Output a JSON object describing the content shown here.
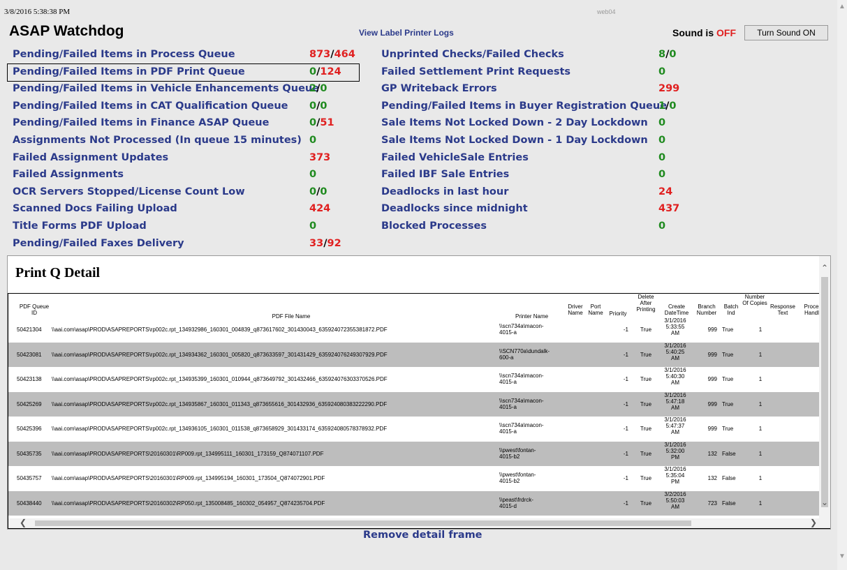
{
  "header": {
    "timestamp": "3/8/2016 5:38:38 PM",
    "server": "web04",
    "title": "ASAP Watchdog",
    "logs_link": "View Label Printer Logs",
    "sound_label": "Sound is",
    "sound_state": "OFF",
    "sound_button": "Turn Sound ON"
  },
  "metrics_left": [
    {
      "label": "Pending/Failed Items in Process Queue",
      "pending": "873",
      "failed": "464",
      "pending_color": "red",
      "failed_color": "red"
    },
    {
      "label": "Pending/Failed Items in PDF Print Queue",
      "pending": "0",
      "failed": "124",
      "pending_color": "green",
      "failed_color": "red"
    },
    {
      "label": "Pending/Failed Items in Vehicle Enhancements Queue",
      "pending": "2",
      "failed": "0",
      "pending_color": "green",
      "failed_color": "green"
    },
    {
      "label": "Pending/Failed Items in CAT Qualification Queue",
      "pending": "0",
      "failed": "0",
      "pending_color": "green",
      "failed_color": "green"
    },
    {
      "label": "Pending/Failed Items in Finance ASAP Queue",
      "pending": "0",
      "failed": "51",
      "pending_color": "green",
      "failed_color": "red"
    },
    {
      "label": "Assignments Not Processed (In queue 15 minutes)",
      "value": "0",
      "color": "green"
    },
    {
      "label": "Failed Assignment Updates",
      "value": "373",
      "color": "red"
    },
    {
      "label": "Failed Assignments",
      "value": "0",
      "color": "green"
    },
    {
      "label": "OCR Servers Stopped/License Count Low",
      "pending": "0",
      "failed": "0",
      "pending_color": "green",
      "failed_color": "green"
    },
    {
      "label": "Scanned Docs Failing Upload",
      "value": "424",
      "color": "red"
    },
    {
      "label": "Title Forms PDF Upload",
      "value": "0",
      "color": "green"
    },
    {
      "label": "Pending/Failed Faxes Delivery",
      "pending": "33",
      "failed": "92",
      "pending_color": "red",
      "failed_color": "red"
    }
  ],
  "metrics_right": [
    {
      "label": "Unprinted Checks/Failed Checks",
      "pending": "8",
      "failed": "0",
      "pending_color": "green",
      "failed_color": "green"
    },
    {
      "label": "Failed Settlement Print Requests",
      "value": "0",
      "color": "green"
    },
    {
      "label": "GP Writeback Errors",
      "value": "299",
      "color": "red"
    },
    {
      "label": "Pending/Failed Items in Buyer Registration Queue",
      "pending": "1",
      "failed": "0",
      "pending_color": "green",
      "failed_color": "green"
    },
    {
      "label": "Sale Items Not Locked Down - 2 Day Lockdown",
      "value": "0",
      "color": "green"
    },
    {
      "label": "Sale Items Not Locked Down - 1 Day Lockdown",
      "value": "0",
      "color": "green"
    },
    {
      "label": "Failed VehicleSale Entries",
      "value": "0",
      "color": "green"
    },
    {
      "label": "Failed IBF Sale Entries",
      "value": "0",
      "color": "green"
    },
    {
      "label": "Deadlocks in last hour",
      "value": "24",
      "color": "red"
    },
    {
      "label": "Deadlocks since midnight",
      "value": "437",
      "color": "red"
    },
    {
      "label": "Blocked Processes",
      "value": "0",
      "color": "green"
    }
  ],
  "detail": {
    "title": "Print Q Detail",
    "columns": [
      "PDF Queue ID",
      "PDF File Name",
      "Printer Name",
      "Driver Name",
      "Port Name",
      "Priority",
      "Delete After Printing",
      "Create DateTime",
      "Branch Number",
      "Batch Ind",
      "Number Of Copies",
      "Response Text",
      "Process Handler"
    ],
    "rows": [
      {
        "id": "50421304",
        "file": "\\\\aai.com\\asap\\PROD\\ASAPREPORTS\\rp002c.rpt_134932986_160301_004839_q873617602_301430043_635924072355381872.PDF",
        "printer": [
          "\\\\scn734a\\macon-",
          "4015-a"
        ],
        "priority": "-1",
        "delete": "True",
        "date": [
          "3/1/2016",
          "5:33:55",
          "AM"
        ],
        "branch": "999",
        "batch": "True",
        "copies": "1"
      },
      {
        "id": "50423081",
        "file": "\\\\aai.com\\asap\\PROD\\ASAPREPORTS\\rp002c.rpt_134934362_160301_005820_q873633597_301431429_635924076249307929.PDF",
        "printer": [
          "\\\\SCN770a\\dundalk-",
          "600-a"
        ],
        "priority": "-1",
        "delete": "True",
        "date": [
          "3/1/2016",
          "5:40:25",
          "AM"
        ],
        "branch": "999",
        "batch": "True",
        "copies": "1"
      },
      {
        "id": "50423138",
        "file": "\\\\aai.com\\asap\\PROD\\ASAPREPORTS\\rp002c.rpt_134935399_160301_010944_q873649792_301432466_635924076303370526.PDF",
        "printer": [
          "\\\\scn734a\\macon-",
          "4015-a"
        ],
        "priority": "-1",
        "delete": "True",
        "date": [
          "3/1/2016",
          "5:40:30",
          "AM"
        ],
        "branch": "999",
        "batch": "True",
        "copies": "1"
      },
      {
        "id": "50425269",
        "file": "\\\\aai.com\\asap\\PROD\\ASAPREPORTS\\rp002c.rpt_134935867_160301_011343_q873655616_301432936_635924080383222290.PDF",
        "printer": [
          "\\\\scn734a\\macon-",
          "4015-a"
        ],
        "priority": "-1",
        "delete": "True",
        "date": [
          "3/1/2016",
          "5:47:18",
          "AM"
        ],
        "branch": "999",
        "batch": "True",
        "copies": "1"
      },
      {
        "id": "50425396",
        "file": "\\\\aai.com\\asap\\PROD\\ASAPREPORTS\\rp002c.rpt_134936105_160301_011538_q873658929_301433174_635924080578378932.PDF",
        "printer": [
          "\\\\scn734a\\macon-",
          "4015-a"
        ],
        "priority": "-1",
        "delete": "True",
        "date": [
          "3/1/2016",
          "5:47:37",
          "AM"
        ],
        "branch": "999",
        "batch": "True",
        "copies": "1"
      },
      {
        "id": "50435735",
        "file": "\\\\aai.com\\asap\\PROD\\ASAPREPORTS\\20160301\\RP009.rpt_134995111_160301_173159_Q874071107.PDF",
        "printer": [
          "\\\\pwest\\fontan-",
          "4015-b2"
        ],
        "priority": "-1",
        "delete": "True",
        "date": [
          "3/1/2016",
          "5:32:00",
          "PM"
        ],
        "branch": "132",
        "batch": "False",
        "copies": "1"
      },
      {
        "id": "50435757",
        "file": "\\\\aai.com\\asap\\PROD\\ASAPREPORTS\\20160301\\RP009.rpt_134995194_160301_173504_Q874072901.PDF",
        "printer": [
          "\\\\pwest\\fontan-",
          "4015-b2"
        ],
        "priority": "-1",
        "delete": "True",
        "date": [
          "3/1/2016",
          "5:35:04",
          "PM"
        ],
        "branch": "132",
        "batch": "False",
        "copies": "1"
      },
      {
        "id": "50438440",
        "file": "\\\\aai.com\\asap\\PROD\\ASAPREPORTS\\20160302\\RP050.rpt_135008485_160302_054957_Q874235704.PDF",
        "printer": [
          "\\\\peast\\frdrck-",
          "4015-d"
        ],
        "priority": "-1",
        "delete": "True",
        "date": [
          "3/2/2016",
          "5:50:03",
          "AM"
        ],
        "branch": "723",
        "batch": "False",
        "copies": "1"
      }
    ]
  },
  "footer": {
    "remove_link": "Remove detail frame"
  }
}
